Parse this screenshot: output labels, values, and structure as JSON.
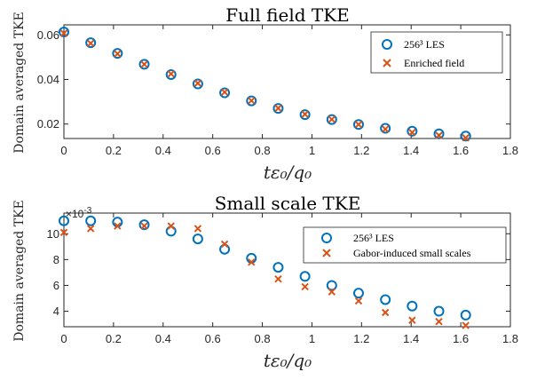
{
  "chart_data": [
    {
      "type": "scatter",
      "title": "Full field TKE",
      "ylabel": "Domain averaged TKE",
      "xlabel": "tε₀/q₀",
      "xlim": [
        0,
        1.8
      ],
      "ylim": [
        0.0135,
        0.0645
      ],
      "xticks": [
        0,
        0.2,
        0.4,
        0.6,
        0.8,
        1,
        1.2,
        1.4,
        1.6,
        1.8
      ],
      "xtick_labels": [
        "0",
        "0.2",
        "0.4",
        "0.6",
        "0.8",
        "1",
        "1.2",
        "1.4",
        "1.6",
        "1.8"
      ],
      "yticks": [
        0.02,
        0.04,
        0.06
      ],
      "ytick_labels": [
        "0.02",
        "0.04",
        "0.06"
      ],
      "legend_position": "top-right",
      "series": [
        {
          "name": "256³ LES",
          "marker": "circle",
          "color": "#0072BD",
          "x": [
            0,
            0.108,
            0.216,
            0.324,
            0.432,
            0.54,
            0.648,
            0.756,
            0.864,
            0.972,
            1.08,
            1.188,
            1.296,
            1.404,
            1.512,
            1.62
          ],
          "y": [
            0.0613,
            0.0565,
            0.0517,
            0.0468,
            0.0422,
            0.038,
            0.034,
            0.0304,
            0.027,
            0.0242,
            0.022,
            0.0198,
            0.0181,
            0.0168,
            0.0156,
            0.0146
          ]
        },
        {
          "name": "Enriched field",
          "marker": "x",
          "color": "#D95319",
          "x": [
            0,
            0.108,
            0.216,
            0.324,
            0.432,
            0.54,
            0.648,
            0.756,
            0.864,
            0.972,
            1.08,
            1.188,
            1.296,
            1.404,
            1.512,
            1.62
          ],
          "y": [
            0.0607,
            0.0562,
            0.0515,
            0.0468,
            0.0425,
            0.0383,
            0.0343,
            0.0305,
            0.0271,
            0.0244,
            0.0221,
            0.0198,
            0.0177,
            0.0162,
            0.0149,
            0.0138
          ]
        }
      ]
    },
    {
      "type": "scatter",
      "title": "Small scale TKE",
      "ylabel": "Domain averaged TKE",
      "xlabel": "tε₀/q₀",
      "exponent_label": "×10",
      "exponent_power": "-3",
      "xlim": [
        0,
        1.8
      ],
      "ylim": [
        2.8,
        11.6
      ],
      "xticks": [
        0,
        0.2,
        0.4,
        0.6,
        0.8,
        1,
        1.2,
        1.4,
        1.6,
        1.8
      ],
      "xtick_labels": [
        "0",
        "0.2",
        "0.4",
        "0.6",
        "0.8",
        "1",
        "1.2",
        "1.4",
        "1.6",
        "1.8"
      ],
      "yticks": [
        4,
        6,
        8,
        10
      ],
      "ytick_labels": [
        "4",
        "6",
        "8",
        "10"
      ],
      "legend_position": "top-right",
      "series": [
        {
          "name": "256³ LES",
          "marker": "circle",
          "color": "#0072BD",
          "x": [
            0,
            0.108,
            0.216,
            0.324,
            0.432,
            0.54,
            0.648,
            0.756,
            0.864,
            0.972,
            1.08,
            1.188,
            1.296,
            1.404,
            1.512,
            1.62
          ],
          "y": [
            11.0,
            11.0,
            10.9,
            10.7,
            10.2,
            9.6,
            8.8,
            8.1,
            7.4,
            6.7,
            6.0,
            5.4,
            4.9,
            4.4,
            4.0,
            3.7
          ]
        },
        {
          "name": "Gabor-induced small scales",
          "marker": "x",
          "color": "#D95319",
          "x": [
            0,
            0.108,
            0.216,
            0.324,
            0.432,
            0.54,
            0.648,
            0.756,
            0.864,
            0.972,
            1.08,
            1.188,
            1.296,
            1.404,
            1.512,
            1.62
          ],
          "y": [
            10.1,
            10.4,
            10.6,
            10.6,
            10.6,
            10.4,
            9.2,
            7.8,
            6.5,
            5.9,
            5.5,
            4.8,
            3.9,
            3.3,
            3.2,
            2.9
          ]
        }
      ]
    }
  ]
}
